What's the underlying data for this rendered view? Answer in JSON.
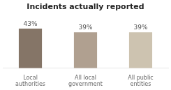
{
  "chart_data": {
    "type": "bar",
    "title": "Incidents actually reported",
    "categories": [
      "Local\nauthorities",
      "All local\ngovernment",
      "All public\nentities"
    ],
    "values": [
      43,
      39,
      39
    ],
    "value_labels": [
      "43%",
      "39%",
      "39%"
    ],
    "colors": [
      "#857567",
      "#b0a090",
      "#cdc3b0"
    ],
    "ylim": [
      0,
      58
    ],
    "data_labels": true,
    "grid": false,
    "tick_labels": "x"
  }
}
